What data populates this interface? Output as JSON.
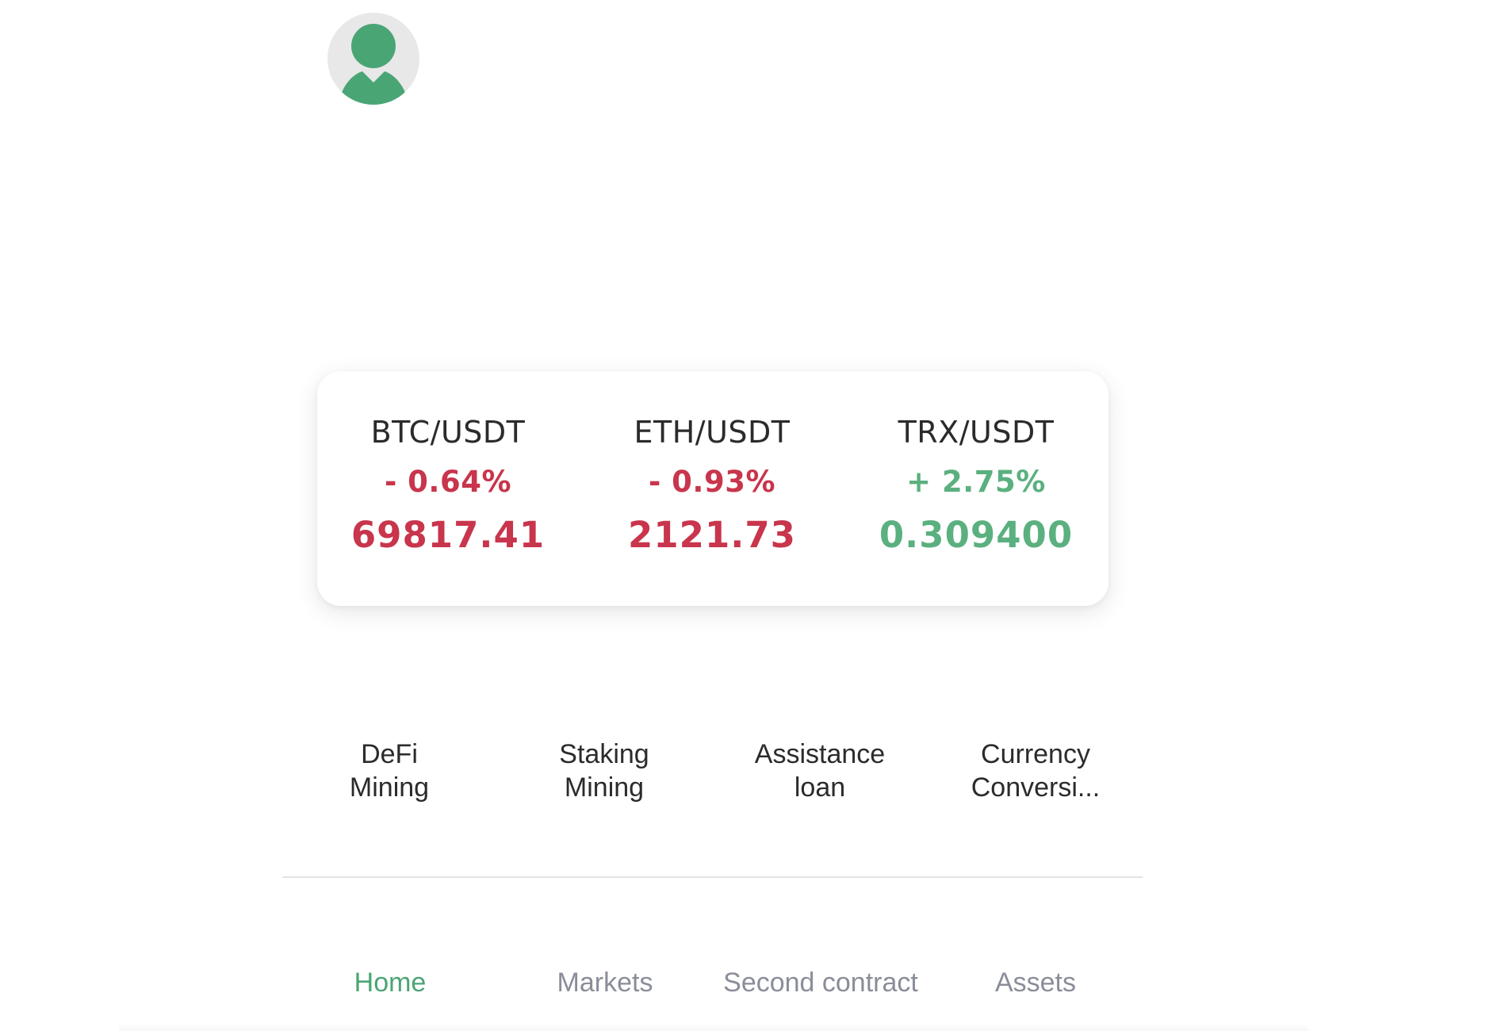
{
  "header": {
    "avatar_icon": "user-avatar-icon"
  },
  "colors": {
    "up": "#5bb07f",
    "down": "#c8354c",
    "accent": "#4aa575",
    "tab_inactive": "#8a8d99"
  },
  "tickers": [
    {
      "pair": "BTC/USDT",
      "change": "- 0.64%",
      "price": "69817.41",
      "direction": "down"
    },
    {
      "pair": "ETH/USDT",
      "change": "- 0.93%",
      "price": "2121.73",
      "direction": "down"
    },
    {
      "pair": "TRX/USDT",
      "change": "+ 2.75%",
      "price": "0.309400",
      "direction": "up"
    }
  ],
  "features": [
    {
      "line1": "DeFi",
      "line2": "Mining"
    },
    {
      "line1": "Staking",
      "line2": "Mining"
    },
    {
      "line1": "Assistance",
      "line2": "loan"
    },
    {
      "line1": "Currency",
      "line2": "Conversi..."
    }
  ],
  "tabbar": {
    "tabs": [
      {
        "label": "Home",
        "active": true
      },
      {
        "label": "Markets",
        "active": false
      },
      {
        "label": "Second contract",
        "active": false
      },
      {
        "label": "Assets",
        "active": false
      }
    ]
  }
}
